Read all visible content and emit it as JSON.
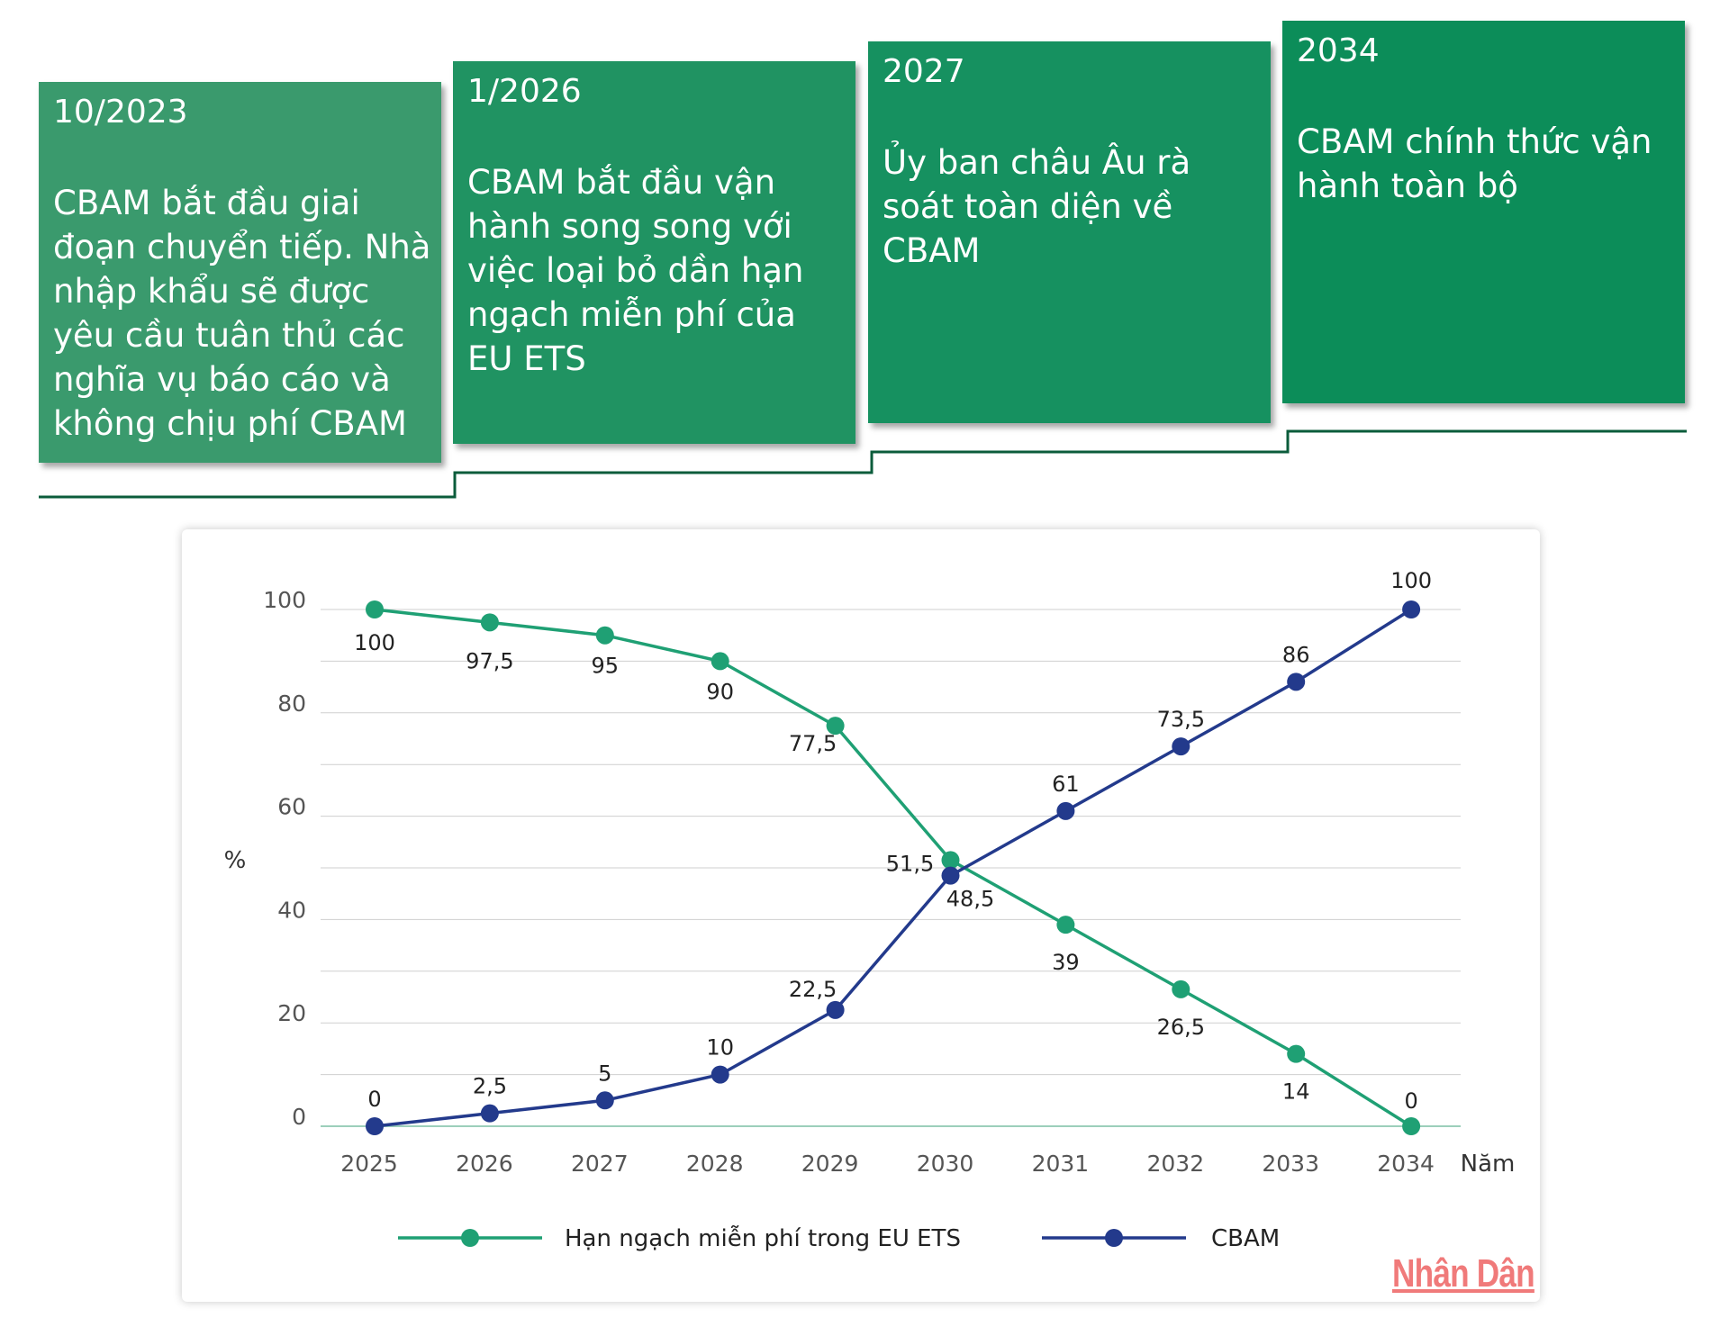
{
  "timeline": [
    {
      "date": "10/2023",
      "text": "CBAM bắt đầu giai đoạn chuyển tiếp. Nhà nhập khẩu sẽ được yêu cầu tuân thủ các nghĩa vụ báo cáo và không chịu phí CBAM",
      "color": "#3a9a6d"
    },
    {
      "date": "1/2026",
      "text": "CBAM bắt đầu vận hành song song với việc loại bỏ dần hạn ngạch miễn phí của EU ETS",
      "color": "#209362"
    },
    {
      "date": "2027",
      "text": "Ủy ban châu Âu rà soát toàn diện về CBAM",
      "color": "#169160"
    },
    {
      "date": "2034",
      "text": "CBAM chính thức vận hành toàn bộ",
      "color": "#0c8d59"
    }
  ],
  "chart_data": {
    "type": "line",
    "x": [
      "2025",
      "2026",
      "2027",
      "2028",
      "2029",
      "2030",
      "2031",
      "2032",
      "2033",
      "2034"
    ],
    "xlabel": "Năm",
    "ylabel": "%",
    "ylim": [
      0,
      100
    ],
    "yticks": [
      "0",
      "20",
      "40",
      "60",
      "80",
      "100"
    ],
    "grid": true,
    "legend_position": "bottom",
    "series": [
      {
        "name": "Hạn ngạch miễn phí trong EU ETS",
        "color": "#1fa074",
        "values": [
          100,
          97.5,
          95,
          90,
          77.5,
          51.5,
          39,
          26.5,
          14,
          0
        ],
        "labels": [
          "100",
          "97,5",
          "95",
          "90",
          "77,5",
          "51,5",
          "39",
          "26,5",
          "14",
          "0"
        ]
      },
      {
        "name": "CBAM",
        "color": "#233a8c",
        "values": [
          0,
          2.5,
          5,
          10,
          22.5,
          48.5,
          61,
          73.5,
          86,
          100
        ],
        "labels": [
          "0",
          "2,5",
          "5",
          "10",
          "22,5",
          "48,5",
          "61",
          "73,5",
          "86",
          "100"
        ]
      }
    ]
  },
  "watermark": "Nhân Dân"
}
